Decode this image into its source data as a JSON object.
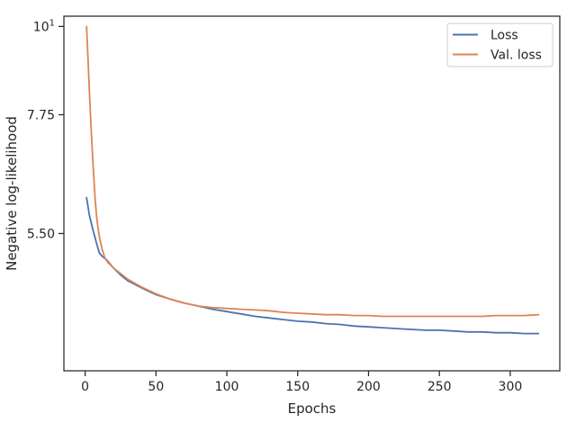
{
  "chart_data": {
    "type": "line",
    "xlabel": "Epochs",
    "ylabel": "Negative log-likelihood",
    "xlim": [
      -15,
      335
    ],
    "ylim": [
      3.7,
      10.3
    ],
    "log_y": true,
    "x_ticks": [
      0,
      50,
      100,
      150,
      200,
      250,
      300
    ],
    "x_tick_labels": [
      "0",
      "50",
      "100",
      "150",
      "200",
      "250",
      "300"
    ],
    "y_ticks": [
      5.5,
      7.75,
      10
    ],
    "y_tick_labels": [
      "5.50",
      "7.75",
      "10"
    ],
    "y_top_exponent": "1",
    "grid": false,
    "legend_position": "top-right",
    "series": [
      {
        "name": "Loss",
        "color": "#4c72b0",
        "x": [
          1,
          3,
          5,
          8,
          10,
          12,
          15,
          20,
          25,
          30,
          40,
          50,
          60,
          70,
          80,
          90,
          100,
          110,
          120,
          130,
          140,
          150,
          160,
          170,
          180,
          190,
          200,
          210,
          220,
          230,
          240,
          250,
          260,
          270,
          280,
          290,
          300,
          310,
          320
        ],
        "values": [
          6.1,
          5.8,
          5.6,
          5.35,
          5.2,
          5.15,
          5.1,
          4.98,
          4.88,
          4.8,
          4.7,
          4.61,
          4.55,
          4.5,
          4.46,
          4.42,
          4.39,
          4.36,
          4.33,
          4.31,
          4.29,
          4.27,
          4.26,
          4.24,
          4.23,
          4.21,
          4.2,
          4.19,
          4.18,
          4.17,
          4.16,
          4.16,
          4.15,
          4.14,
          4.14,
          4.13,
          4.13,
          4.12,
          4.12
        ]
      },
      {
        "name": "Val. loss",
        "color": "#dd8452",
        "x": [
          1,
          2,
          3,
          4,
          5,
          6,
          7,
          8,
          9,
          10,
          12,
          14,
          16,
          18,
          20,
          25,
          30,
          40,
          50,
          60,
          70,
          80,
          90,
          100,
          110,
          120,
          130,
          140,
          150,
          160,
          170,
          180,
          190,
          200,
          210,
          220,
          230,
          240,
          250,
          260,
          270,
          280,
          290,
          300,
          310,
          320
        ],
        "values": [
          10.0,
          9.1,
          8.3,
          7.6,
          7.0,
          6.5,
          6.1,
          5.8,
          5.6,
          5.45,
          5.25,
          5.12,
          5.06,
          5.02,
          4.98,
          4.9,
          4.82,
          4.71,
          4.62,
          4.55,
          4.5,
          4.46,
          4.44,
          4.43,
          4.42,
          4.41,
          4.4,
          4.38,
          4.37,
          4.36,
          4.35,
          4.35,
          4.34,
          4.34,
          4.33,
          4.33,
          4.33,
          4.33,
          4.33,
          4.33,
          4.33,
          4.33,
          4.34,
          4.34,
          4.34,
          4.35
        ]
      }
    ]
  }
}
